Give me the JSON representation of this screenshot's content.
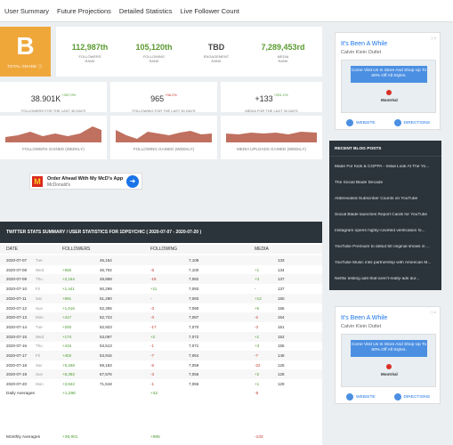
{
  "nav": [
    "User Summary",
    "Future Projections",
    "Detailed Statistics",
    "Live Follower Count"
  ],
  "grade": {
    "letter": "B",
    "label": "TOTAL GRADE ⓘ",
    "color": "#f0a73a"
  },
  "ranks": [
    {
      "value": "112,987th",
      "label1": "FOLLOWERS",
      "label2": "RANK",
      "color": "#5a9a2f"
    },
    {
      "value": "105,120th",
      "label1": "FOLLOWING",
      "label2": "RANK",
      "color": "#5a9a2f"
    },
    {
      "value": "TBD",
      "label1": "ENGAGEMENT",
      "label2": "RANK",
      "color": "#444"
    },
    {
      "value": "7,289,453rd",
      "label1": "MEDIA",
      "label2": "RANK",
      "color": "#5a9a2f"
    }
  ],
  "thirty": [
    {
      "value": "38.901K",
      "delta": "+267.0%",
      "delta_color": "g",
      "label": "FOLLOWERS FOR THE LAST 30 DAYS"
    },
    {
      "value": "965",
      "delta": "+38.2%",
      "delta_color": "r",
      "label": "FOLLOWING FOR THE LAST 30 DAYS"
    },
    {
      "value": "+133",
      "delta": "+251.1%",
      "delta_color": "g",
      "label": "MEDIA FOR THE LAST 30 DAYS"
    }
  ],
  "sparks": [
    {
      "label": "FOLLOWERS GAINED (WEEKLY)"
    },
    {
      "label": "FOLLOWING GAINED (WEEKLY)"
    },
    {
      "label": "MEDIA UPLOADS GAINED (WEEKLY)"
    }
  ],
  "ad_top": {
    "t1": "It's Been A While",
    "t2": "Calvin Klein Outlet",
    "bubble": "Come Visit Us In Store And Shop Up To 60% Off All Styles.",
    "place": "Montréal",
    "website": "WEBSITE",
    "directions": "DIRECTIONS"
  },
  "ad_bottom": {
    "t1": "It's Been A While",
    "t2": "Calvin Klein Outlet",
    "bubble": "Come Visit Us In Store And Shop Up To 60% Off All Styles.",
    "place": "Montréal",
    "website": "WEBSITE",
    "directions": "DIRECTIONS"
  },
  "mcad": {
    "title": "Order Ahead With My McD's App",
    "brand": "McDonald's",
    "logo": "M"
  },
  "blog": {
    "heading": "RECENT BLOG POSTS",
    "items": [
      "Made For Kids & COPPA - Initial Look At The Yo...",
      "The Social Blade Decade",
      "Abbreviated Subscriber Counts on YouTube",
      "Social Blade launches Report Cards for YouTube",
      "Instagram opens highly-coveted verification fo...",
      "YouTube Premium to debut 50 original shows in ...",
      "YouTube Music inks partnership with American M...",
      "Netflix testing ads-that-aren't-really-ads dur..."
    ]
  },
  "table": {
    "title": "TWITTER STATS SUMMARY / USER STATISTICS FOR 1DPSYCHIC ( 2020-07-07 - 2020-07-20 )",
    "headers": [
      "DATE",
      "FOLLOWERS",
      "FOLLOWING",
      "MEDIA"
    ],
    "rows": [
      {
        "date": "2020-07-07",
        "day": "Tue",
        "fd": "",
        "fv": "46,154",
        "gd": "",
        "gv": "7,108",
        "md": "",
        "mv": "133"
      },
      {
        "date": "2020-07-08",
        "day": "Wed",
        "fd": "+550",
        "fv": "46,704",
        "gd": "-8",
        "gv": "7,100",
        "md": "+1",
        "mv": "134"
      },
      {
        "date": "2020-07-09",
        "day": "Thu",
        "fd": "+2,154",
        "fv": "48,858",
        "gd": "-18",
        "gv": "7,082",
        "md": "+3",
        "mv": "137"
      },
      {
        "date": "2020-07-10",
        "day": "Fri",
        "fd": "+1,441",
        "fv": "50,299",
        "gd": "+11",
        "gv": "7,093",
        "md": "-",
        "mv": "137"
      },
      {
        "date": "2020-07-11",
        "day": "Sat",
        "fd": "+991",
        "fv": "51,290",
        "gd": "-",
        "gv": "7,093",
        "md": "+13",
        "mv": "150"
      },
      {
        "date": "2020-07-12",
        "day": "Sun",
        "fd": "+1,016",
        "fv": "52,306",
        "gd": "-3",
        "gv": "7,090",
        "md": "+6",
        "mv": "156"
      },
      {
        "date": "2020-07-13",
        "day": "Mon",
        "fd": "+417",
        "fv": "52,723",
        "gd": "-3",
        "gv": "7,087",
        "md": "-2",
        "mv": "154"
      },
      {
        "date": "2020-07-14",
        "day": "Tue",
        "fd": "+200",
        "fv": "52,923",
        "gd": "-17",
        "gv": "7,070",
        "md": "-3",
        "mv": "151"
      },
      {
        "date": "2020-07-15",
        "day": "Wed",
        "fd": "+174",
        "fv": "53,097",
        "gd": "+2",
        "gv": "7,072",
        "md": "+1",
        "mv": "152"
      },
      {
        "date": "2020-07-16",
        "day": "Thu",
        "fd": "+416",
        "fv": "53,513",
        "gd": "-1",
        "gv": "7,071",
        "md": "+3",
        "mv": "155"
      },
      {
        "date": "2020-07-17",
        "day": "Fri",
        "fd": "+402",
        "fv": "53,915",
        "gd": "-7",
        "gv": "7,064",
        "md": "-7",
        "mv": "148"
      },
      {
        "date": "2020-07-18",
        "day": "Sat",
        "fd": "+5,268",
        "fv": "59,183",
        "gd": "-5",
        "gv": "7,059",
        "md": "-22",
        "mv": "126"
      },
      {
        "date": "2020-07-19",
        "day": "Sun",
        "fd": "+8,393",
        "fv": "67,576",
        "gd": "-3",
        "gv": "7,056",
        "md": "+2",
        "mv": "128"
      },
      {
        "date": "2020-07-20",
        "day": "Mon",
        "fd": "+3,942",
        "fv": "71,518",
        "gd": "-1",
        "gv": "7,055",
        "md": "+1",
        "mv": "129"
      }
    ],
    "daily": {
      "label": "Daily Averages",
      "f": "+1,296",
      "g": "+32",
      "m": "-5"
    },
    "monthly": {
      "label": "Monthly Averages",
      "f": "+38,901",
      "g": "+965",
      "m": "-133"
    }
  }
}
